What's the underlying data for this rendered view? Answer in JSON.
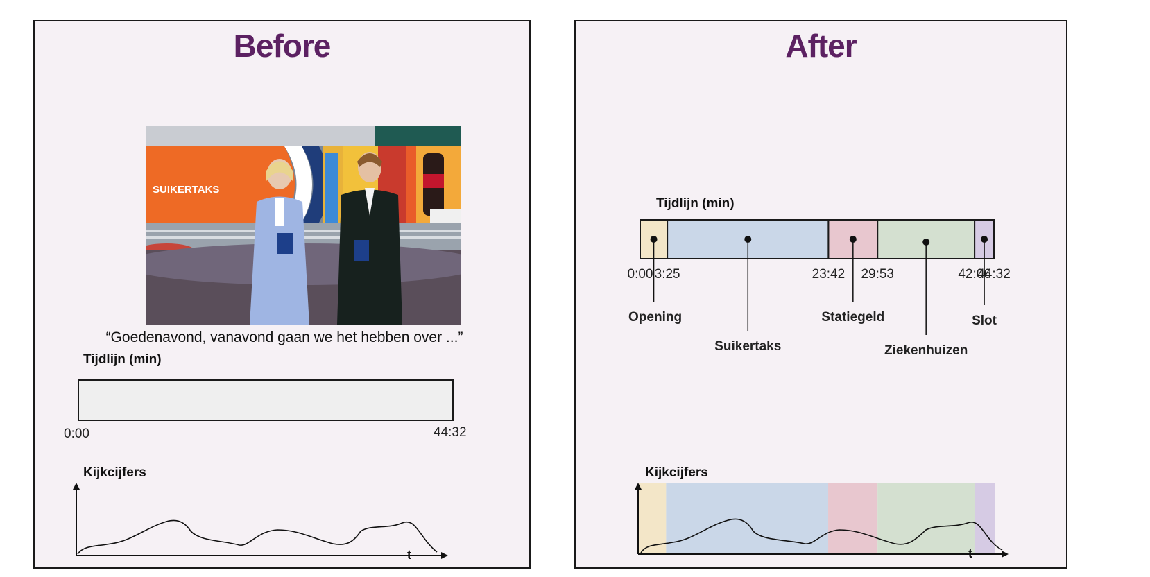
{
  "before": {
    "title": "Before",
    "photo_caption": "SUIKERTAKS",
    "quote": "“Goedenavond, vanavond gaan we het hebben over ...”",
    "timeline_label": "Tijdlijn (min)",
    "timeline_start": "0:00",
    "timeline_end": "44:32",
    "ratings_label": "Kijkcijfers",
    "axis_t": "t"
  },
  "after": {
    "title": "After",
    "timeline_label": "Tijdlijn (min)",
    "ticks": [
      "0:00",
      "3:25",
      "23:42",
      "29:53",
      "42:06",
      "44:32"
    ],
    "segments": [
      {
        "name": "Opening",
        "start": "0:00",
        "end": "3:25",
        "color": "#f3e6c8"
      },
      {
        "name": "Suikertaks",
        "start": "3:25",
        "end": "23:42",
        "color": "#cad7e8"
      },
      {
        "name": "Statiegeld",
        "start": "23:42",
        "end": "29:53",
        "color": "#e8c7cf"
      },
      {
        "name": "Ziekenhuizen",
        "start": "29:53",
        "end": "42:06",
        "color": "#d4e0d0"
      },
      {
        "name": "Slot",
        "start": "42:06",
        "end": "44:32",
        "color": "#d6cbe4"
      }
    ],
    "ratings_label": "Kijkcijfers",
    "axis_t": "t"
  },
  "colors": {
    "title": "#5c2162",
    "panel_bg": "#f6f1f5",
    "empty_timeline": "#efefef"
  }
}
